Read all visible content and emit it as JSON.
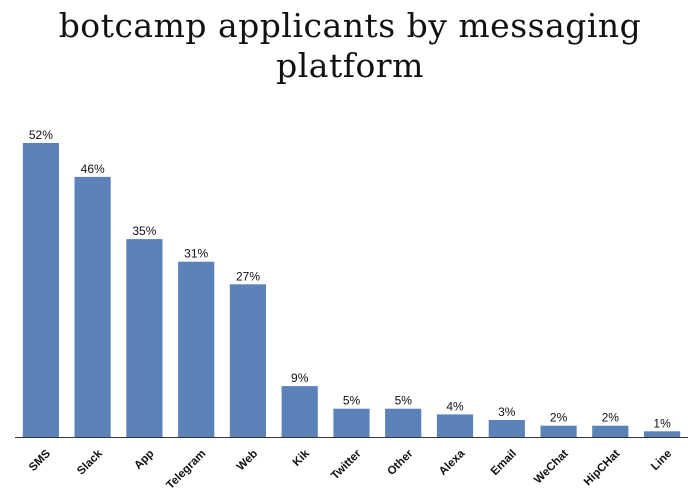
{
  "chart_data": {
    "type": "bar",
    "title_lines": [
      "botcamp applicants by messaging",
      "platform"
    ],
    "categories": [
      "SMS",
      "Slack",
      "App",
      "Telegram",
      "Web",
      "Kik",
      "Twitter",
      "Other",
      "Alexa",
      "Email",
      "WeChat",
      "HipCHat",
      "Line"
    ],
    "values": [
      52,
      46,
      35,
      31,
      27,
      9,
      5,
      5,
      4,
      3,
      2,
      2,
      1
    ],
    "value_labels": [
      "52%",
      "46%",
      "35%",
      "31%",
      "27%",
      "9%",
      "5%",
      "5%",
      "4%",
      "3%",
      "2%",
      "2%",
      "1%"
    ],
    "ylim": [
      0,
      52
    ],
    "grid": false,
    "legend": "none",
    "colors": {
      "bar": "#5b82b9",
      "text": "#111111",
      "axis": "#333333"
    }
  }
}
